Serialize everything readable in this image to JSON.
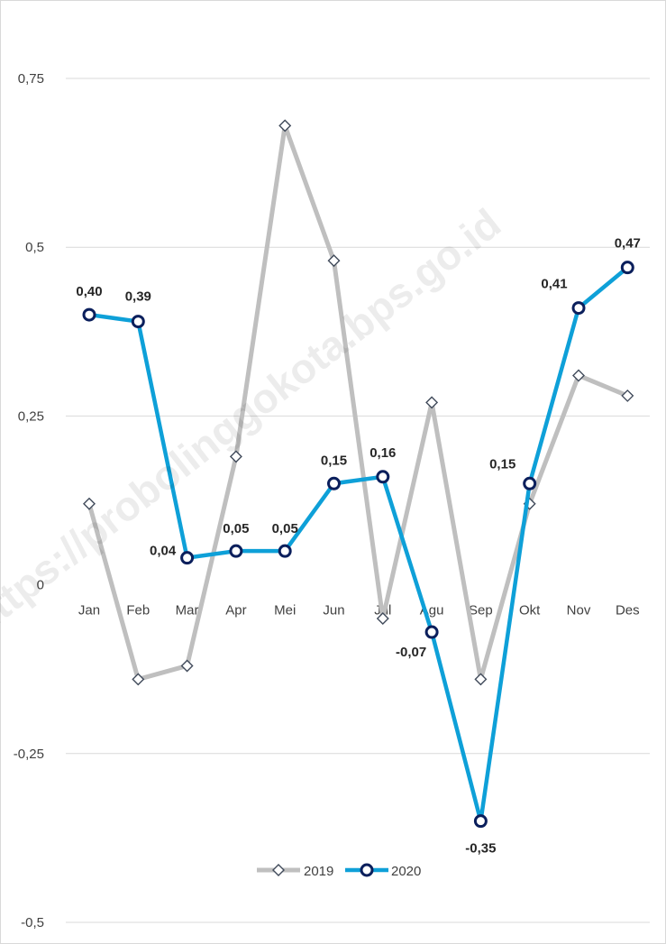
{
  "chart_data": {
    "type": "line",
    "categories": [
      "Jan",
      "Feb",
      "Mar",
      "Apr",
      "Mei",
      "Jun",
      "Jul",
      "Agu",
      "Sep",
      "Okt",
      "Nov",
      "Des"
    ],
    "series": [
      {
        "name": "2019",
        "values": [
          0.12,
          -0.14,
          -0.12,
          0.19,
          0.68,
          0.48,
          -0.05,
          0.27,
          -0.14,
          0.12,
          0.31,
          0.28
        ],
        "color": "#bfbfbf",
        "marker": "diamond",
        "show_labels": false
      },
      {
        "name": "2020",
        "values": [
          0.4,
          0.39,
          0.04,
          0.05,
          0.05,
          0.15,
          0.16,
          -0.07,
          -0.35,
          0.15,
          0.41,
          0.47
        ],
        "labels": [
          "0,40",
          "0,39",
          "0,04",
          "0,05",
          "0,05",
          "0,15",
          "0,16",
          "-0,07",
          "-0,35",
          "0,15",
          "0,41",
          "0,47"
        ],
        "color": "#0ea0d8",
        "marker_edge": "#0b1f5c",
        "marker": "circle",
        "show_labels": true
      }
    ],
    "y_ticks": [
      0.75,
      0.5,
      0.25,
      0,
      -0.25,
      -0.5
    ],
    "y_tick_labels": [
      "0,75",
      "0,5",
      "0,25",
      "0",
      "-0,25",
      "-0,5"
    ],
    "ylim": [
      -0.5,
      0.75
    ],
    "grid": true,
    "legend_position": "bottom-center",
    "title": "",
    "xlabel": "",
    "ylabel": ""
  },
  "watermark": "https://probolinggokota.bps.go.id"
}
